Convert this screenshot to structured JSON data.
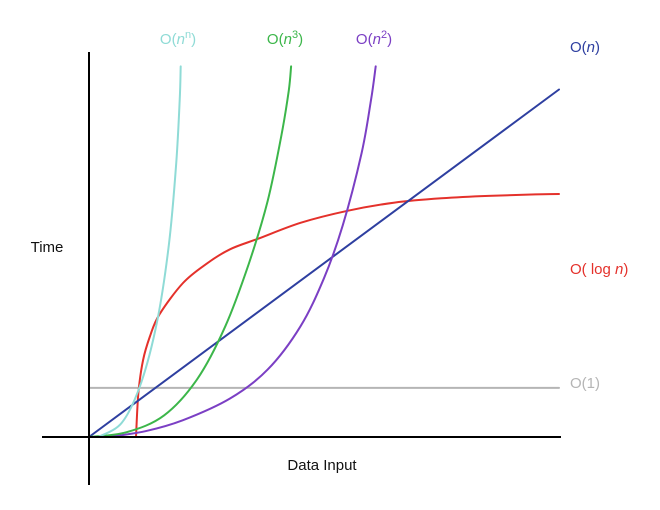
{
  "chart_data": {
    "type": "line",
    "xlabel": "Data Input",
    "ylabel": "Time",
    "xlim": [
      0,
      10
    ],
    "ylim": [
      0,
      8
    ],
    "grid": false,
    "legend": "none",
    "series": [
      {
        "name": "O(1)",
        "label_parts": [
          {
            "text": "O(1)",
            "style": "normal"
          }
        ],
        "color": "#b5b5b5",
        "x": [
          0,
          10
        ],
        "y": [
          1.02,
          1.02
        ]
      },
      {
        "name": "O( log n)",
        "label_parts": [
          {
            "text": "O( log ",
            "style": "normal"
          },
          {
            "text": "n",
            "style": "italic"
          },
          {
            "text": ")",
            "style": "normal"
          }
        ],
        "color": "#e4312b",
        "x": [
          1.0,
          1.05,
          1.15,
          1.3,
          1.5,
          2.0,
          2.5,
          3.0,
          3.6,
          4.5,
          5.5,
          6.5,
          7.5,
          8.5,
          9.5,
          10.0
        ],
        "y": [
          0,
          0.9,
          1.6,
          2.1,
          2.55,
          3.2,
          3.6,
          3.9,
          4.12,
          4.45,
          4.7,
          4.87,
          4.96,
          5.01,
          5.04,
          5.05
        ]
      },
      {
        "name": "O(n)",
        "label_parts": [
          {
            "text": "O(",
            "style": "normal"
          },
          {
            "text": "n",
            "style": "italic"
          },
          {
            "text": ")",
            "style": "normal"
          }
        ],
        "color": "#2e3fa0",
        "x": [
          0,
          10
        ],
        "y": [
          0,
          7.22
        ]
      },
      {
        "name": "O(n^2)",
        "label_parts": [
          {
            "text": "O(",
            "style": "normal"
          },
          {
            "text": "n",
            "style": "italic"
          },
          {
            "text": "2",
            "style": "sup"
          },
          {
            "text": ")",
            "style": "normal"
          }
        ],
        "color": "#7b3fc4",
        "x": [
          0.4,
          1.2,
          2.0,
          3.0,
          3.8,
          4.5,
          5.0,
          5.4,
          5.8,
          6.0,
          6.1
        ],
        "y": [
          0,
          0.12,
          0.35,
          0.8,
          1.4,
          2.3,
          3.3,
          4.4,
          5.9,
          7.0,
          7.7
        ]
      },
      {
        "name": "O(n^3)",
        "label_parts": [
          {
            "text": "O(",
            "style": "normal"
          },
          {
            "text": "n",
            "style": "italic"
          },
          {
            "text": "3",
            "style": "sup"
          },
          {
            "text": ")",
            "style": "normal"
          }
        ],
        "color": "#3cb64a",
        "x": [
          0,
          0.8,
          1.6,
          2.3,
          2.9,
          3.4,
          3.8,
          4.1,
          4.25,
          4.3
        ],
        "y": [
          0,
          0.1,
          0.45,
          1.2,
          2.3,
          3.6,
          4.9,
          6.3,
          7.2,
          7.7
        ]
      },
      {
        "name": "O(n^n)",
        "label_parts": [
          {
            "text": "O(",
            "style": "normal"
          },
          {
            "text": "n",
            "style": "italic"
          },
          {
            "text": "n",
            "style": "sup"
          },
          {
            "text": ")",
            "style": "normal"
          }
        ],
        "color": "#8fdbd6",
        "x": [
          0.2,
          0.7,
          1.1,
          1.45,
          1.7,
          1.85,
          1.93,
          1.95
        ],
        "y": [
          0,
          0.3,
          1.1,
          2.4,
          4.0,
          5.6,
          7.0,
          7.7
        ]
      }
    ]
  }
}
